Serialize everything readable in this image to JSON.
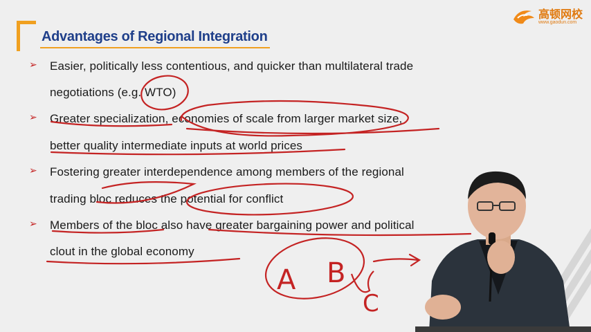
{
  "slide": {
    "title": "Advantages of Regional Integration",
    "logo": {
      "name": "高顿网校",
      "url": "www.gaodun.com",
      "icon": "gaodun-logo-icon"
    },
    "bullet_icon": "arrow-bullet-icon",
    "lines": [
      "Easier, politically less contentious, and quicker than multilateral trade",
      "negotiations (e.g. WTO)",
      "Greater specialization, economies of scale from larger market size,",
      "better quality intermediate inputs at world prices",
      "Fostering greater interdependence among members of the regional",
      "trading bloc reduces the potential for conflict",
      "Members of the bloc also have greater bargaining power and political",
      "clout in the global economy"
    ],
    "handwriting": {
      "a": "A",
      "b": "B",
      "c": "C"
    },
    "colors": {
      "title": "#1f3f8a",
      "accent": "#f0a020",
      "ink": "#c42323"
    }
  }
}
